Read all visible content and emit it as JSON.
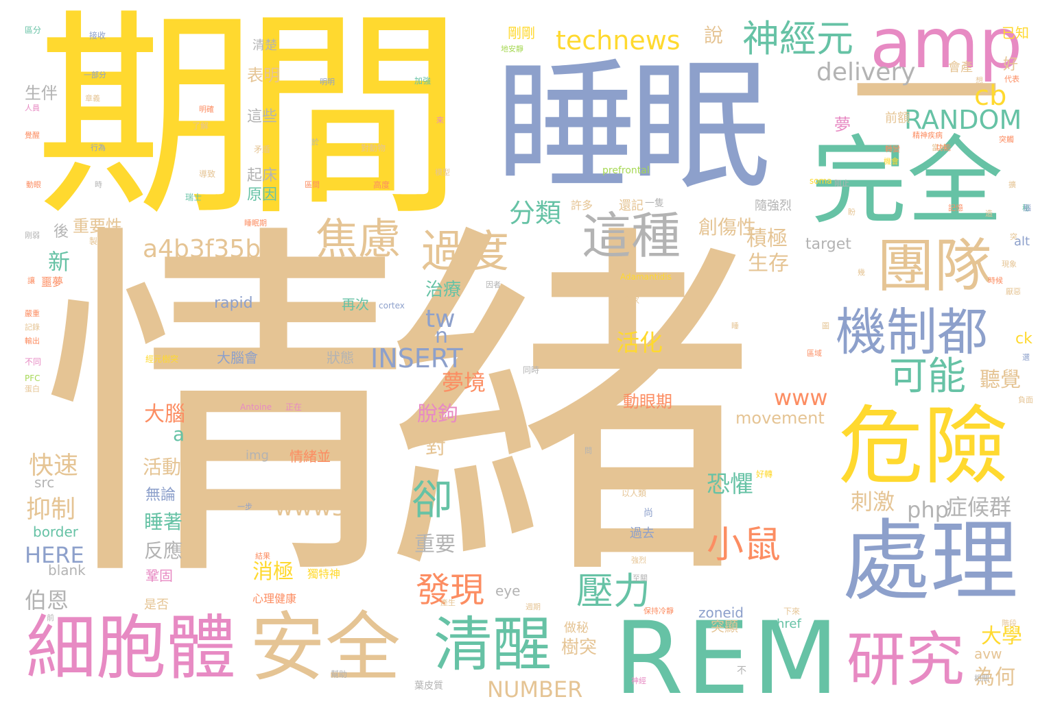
{
  "palette": {
    "gold": "#ffd92f",
    "tan": "#e5c494",
    "blue": "#8da0cb",
    "green": "#66c2a5",
    "pink": "#e78ac3",
    "orange": "#fc8d62",
    "grey": "#b3b3b3",
    "lime": "#a6d854",
    "background": "#ffffff"
  },
  "words": {
    "w001": "情緒",
    "w002": "期間",
    "w003": "睡眠",
    "w004": "一",
    "w005": "完全",
    "w006": "amp",
    "w007": "REM",
    "w008": "處理",
    "w009": "危險",
    "w010": "安全",
    "w011": "細胞體",
    "w012": "清醒",
    "w013": "研究",
    "w014": "團隊",
    "w015": "機制都",
    "w016": "這種",
    "w017": "焦慮",
    "w018": "過度",
    "w019": "神經元",
    "w020": "technews",
    "w021": "delivery",
    "w022": "RANDOM",
    "w023": "cb",
    "w024": "分類",
    "w025": "a4b3f35b",
    "w026": "可能",
    "w027": "卻",
    "w028": "小鼠",
    "w029": "壓力",
    "w030": "發現",
    "w031": "INSERT",
    "w032": "tw",
    "w033": "n",
    "w034": "www",
    "w035": "www5",
    "w036": "php",
    "w037": "症候群",
    "w038": "movement",
    "w039": "NUMBER",
    "w040": "夢境",
    "w041": "活化",
    "w042": "創傷性",
    "w043": "積極",
    "w044": "生存",
    "w045": "恐懼",
    "w046": "刺激",
    "w047": "聽覺",
    "w048": "治療",
    "w049": "新",
    "w050": "大腦",
    "w051": "a",
    "w052": "快速",
    "w053": "抑制",
    "w054": "HERE",
    "w055": "伯恩",
    "w056": "消極",
    "w057": "大學",
    "w058": "樹突",
    "w059": "為何",
    "w060": "脫鉤",
    "w061": "對",
    "w062": "重要",
    "w063": "活動",
    "w064": "睡著",
    "w065": "反應",
    "w066": "無論",
    "w067": "動眼期",
    "w068": "說",
    "w069": "剛剛",
    "w070": "表明",
    "w071": "這些",
    "w072": "起床",
    "w073": "原因",
    "w074": "重要性",
    "w075": "後",
    "w076": "生伴",
    "w077": "清楚",
    "w078": "夢",
    "w079": "前額",
    "w080": "會產",
    "w081": "好",
    "w082": "已知",
    "w083": "target",
    "w084": "alt",
    "w085": "ck",
    "w086": "rapid",
    "w087": "再次",
    "w088": "大腦會",
    "w089": "狀態",
    "w090": "border",
    "w091": "blank",
    "w092": "src",
    "w093": "img",
    "w094": "情緒並",
    "w095": "zoneid",
    "w096": "href",
    "w097": "avw",
    "w098": "eye",
    "w099": "突顯",
    "w100": "做秘",
    "w101": "獨特神",
    "w102": "心理健康",
    "w103": "鞏固",
    "w104": "是否",
    "w105": "好轉",
    "w106": "以人類",
    "w107": "尚",
    "w108": "過去",
    "w109": "許多",
    "w110": "還記",
    "w111": "一隻",
    "w112": "隨強烈",
    "w113": "prefrontal",
    "w114": "soma",
    "w115": "Adamantidis",
    "w116": "cortex",
    "w117": "Antoine",
    "w118": "正在",
    "w119": "科學家",
    "w120": "經元樹突",
    "w121": "同時",
    "w122": "實驗",
    "w123": "接收",
    "w124": "區分",
    "w125": "一部分",
    "w126": "加強",
    "w127": "明明",
    "w128": "了解",
    "w129": "行為",
    "w130": "導致",
    "w131": "瑞士",
    "w132": "睡眠期",
    "w133": "高度",
    "w134": "對動物",
    "w135": "地安靜",
    "w136": "精神疾病",
    "w137": "當神",
    "w138": "功能",
    "w139": "記憶",
    "w140": "現象",
    "w141": "時候",
    "w142": "區域",
    "w143": "PFC",
    "w144": "輸出",
    "w145": "記錄",
    "w146": "嚴重",
    "w147": "不同",
    "w148": "噩夢",
    "w149": "刚弱",
    "w150": "人員",
    "w151": "覺醒",
    "w152": "動眼",
    "w153": "時",
    "w154": "製",
    "w155": "蛋白",
    "w156": "一步",
    "w157": "強烈",
    "w158": "結果",
    "w159": "至關",
    "w160": "週期",
    "w161": "保持冷靜",
    "w162": "相關",
    "w163": "下來",
    "w164": "神經",
    "w165": "不",
    "w166": "幫助",
    "w167": "葉皮質",
    "w168": "階段",
    "w169": "負面",
    "w170": "選",
    "w171": "造",
    "w172": "突觸",
    "w173": "讓",
    "w174": "秘",
    "w175": "代表",
    "w176": "想",
    "w177": "轉變",
    "w178": "機會",
    "w179": "章義",
    "w180": "來",
    "w181": "於",
    "w182": "明確",
    "w183": "矛盾",
    "w184": "模型",
    "w185": "區間",
    "w186": "腦",
    "w187": "突",
    "w188": "睡",
    "w189": "厭惡",
    "w190": "圖",
    "w191": "前",
    "w192": "盼",
    "w193": "問",
    "w194": "產生",
    "w195": "阻止",
    "w196": "擴",
    "w197": "因者",
    "w198": "幾"
  }
}
